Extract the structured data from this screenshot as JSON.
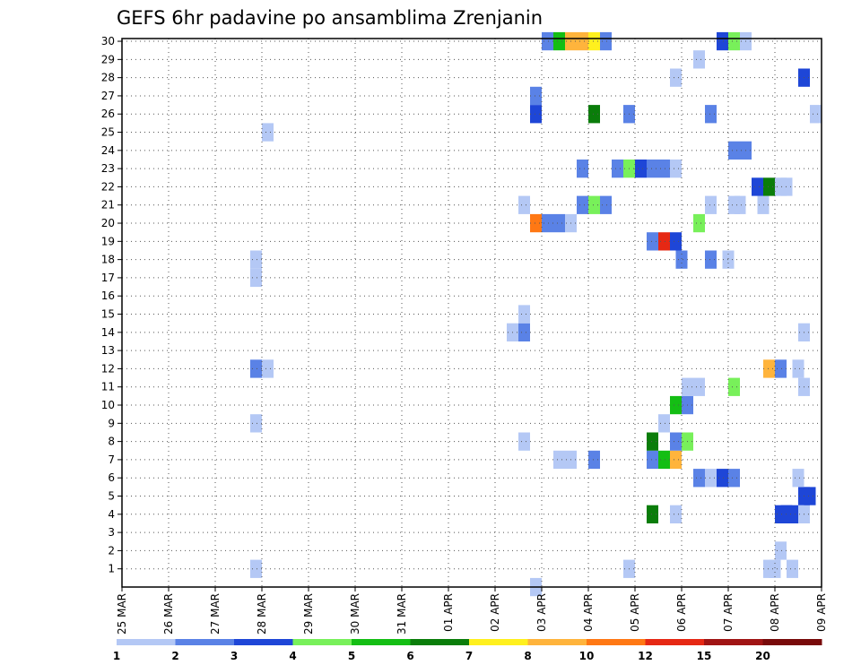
{
  "chart_data": {
    "type": "heatmap",
    "title": "GEFS 6hr padavine po ansamblima Zrenjanin",
    "xlabel": "",
    "ylabel": "",
    "x_tick_labels": [
      "25 MAR",
      "26 MAR",
      "27 MAR",
      "28 MAR",
      "29 MAR",
      "30 MAR",
      "31 MAR",
      "01 APR",
      "02 APR",
      "03 APR",
      "04 APR",
      "05 APR",
      "06 APR",
      "07 APR",
      "08 APR",
      "09 APR"
    ],
    "y_tick_labels": [
      "1",
      "2",
      "3",
      "4",
      "5",
      "6",
      "7",
      "8",
      "9",
      "10",
      "11",
      "12",
      "13",
      "14",
      "15",
      "16",
      "17",
      "18",
      "19",
      "20",
      "21",
      "22",
      "23",
      "24",
      "25",
      "26",
      "27",
      "28",
      "29",
      "30"
    ],
    "xlim_days": [
      0,
      15
    ],
    "ylim": [
      0,
      30
    ],
    "grid": true,
    "cell_width_hours": 6,
    "legend": {
      "placement": "bottom",
      "labels": [
        "1",
        "2",
        "3",
        "4",
        "5",
        "6",
        "7",
        "8",
        "10",
        "12",
        "15",
        "20"
      ],
      "colors": [
        "#b4c8f5",
        "#5a82e6",
        "#1e46d7",
        "#78f05a",
        "#14be14",
        "#0a7d0a",
        "#fff01e",
        "#ffb43c",
        "#ff7814",
        "#e62814",
        "#a01414",
        "#780a0a"
      ],
      "unit": "mm"
    },
    "series_note": "cells: [day offset from 25 MAR, ensemble member, color class index 1-12]",
    "cells": [
      [
        8.75,
        0,
        1
      ],
      [
        2.75,
        1,
        1
      ],
      [
        13.75,
        1,
        1
      ],
      [
        13.875,
        1,
        1
      ],
      [
        14.25,
        1,
        1
      ],
      [
        10.75,
        1,
        1
      ],
      [
        14.0,
        2,
        1
      ],
      [
        11.25,
        4,
        6
      ],
      [
        14.0,
        4,
        3
      ],
      [
        14.125,
        4,
        3
      ],
      [
        14.25,
        4,
        3
      ],
      [
        14.5,
        4,
        1
      ],
      [
        11.75,
        4,
        1
      ],
      [
        14.5,
        5,
        3
      ],
      [
        14.625,
        5,
        3
      ],
      [
        12.25,
        6,
        2
      ],
      [
        12.5,
        6,
        1
      ],
      [
        12.75,
        6,
        3
      ],
      [
        13.0,
        6,
        2
      ],
      [
        14.375,
        6,
        1
      ],
      [
        9.25,
        7,
        1
      ],
      [
        9.5,
        7,
        1
      ],
      [
        10.0,
        7,
        2
      ],
      [
        11.25,
        7,
        2
      ],
      [
        11.5,
        7,
        5
      ],
      [
        11.75,
        7,
        8
      ],
      [
        8.5,
        8,
        1
      ],
      [
        11.25,
        8,
        6
      ],
      [
        11.75,
        8,
        2
      ],
      [
        12.0,
        8,
        4
      ],
      [
        2.75,
        9,
        1
      ],
      [
        11.5,
        9,
        1
      ],
      [
        11.75,
        10,
        5
      ],
      [
        12.0,
        10,
        2
      ],
      [
        12.0,
        11,
        1
      ],
      [
        12.25,
        11,
        1
      ],
      [
        13.0,
        11,
        4
      ],
      [
        14.5,
        11,
        1
      ],
      [
        2.75,
        12,
        2
      ],
      [
        3.0,
        12,
        1
      ],
      [
        13.75,
        12,
        8
      ],
      [
        14.0,
        12,
        2
      ],
      [
        14.375,
        12,
        1
      ],
      [
        8.25,
        14,
        1
      ],
      [
        8.5,
        14,
        2
      ],
      [
        14.5,
        14,
        1
      ],
      [
        8.5,
        15,
        1
      ],
      [
        2.75,
        17,
        1
      ],
      [
        2.75,
        18,
        1
      ],
      [
        11.875,
        18,
        2
      ],
      [
        12.5,
        18,
        2
      ],
      [
        12.875,
        18,
        1
      ],
      [
        11.25,
        19,
        2
      ],
      [
        11.5,
        19,
        10
      ],
      [
        11.75,
        19,
        3
      ],
      [
        8.75,
        20,
        9
      ],
      [
        9.0,
        20,
        2
      ],
      [
        9.25,
        20,
        2
      ],
      [
        9.5,
        20,
        1
      ],
      [
        12.25,
        20,
        4
      ],
      [
        8.5,
        21,
        1
      ],
      [
        9.75,
        21,
        2
      ],
      [
        10.0,
        21,
        4
      ],
      [
        10.25,
        21,
        2
      ],
      [
        12.5,
        21,
        1
      ],
      [
        13.0,
        21,
        1
      ],
      [
        13.125,
        21,
        1
      ],
      [
        13.625,
        21,
        1
      ],
      [
        13.5,
        22,
        3
      ],
      [
        13.75,
        22,
        6
      ],
      [
        14.0,
        22,
        1
      ],
      [
        14.125,
        22,
        1
      ],
      [
        9.75,
        23,
        2
      ],
      [
        10.5,
        23,
        2
      ],
      [
        10.75,
        23,
        4
      ],
      [
        11.0,
        23,
        3
      ],
      [
        11.25,
        23,
        2
      ],
      [
        11.5,
        23,
        2
      ],
      [
        11.75,
        23,
        1
      ],
      [
        13.0,
        24,
        2
      ],
      [
        13.25,
        24,
        2
      ],
      [
        3.0,
        25,
        1
      ],
      [
        8.75,
        26,
        3
      ],
      [
        10.0,
        26,
        6
      ],
      [
        10.75,
        26,
        2
      ],
      [
        12.5,
        26,
        2
      ],
      [
        14.75,
        26,
        1
      ],
      [
        8.75,
        27,
        2
      ],
      [
        11.75,
        28,
        1
      ],
      [
        14.5,
        28,
        3
      ],
      [
        12.25,
        29,
        1
      ],
      [
        9.0,
        30,
        2
      ],
      [
        9.25,
        30,
        5
      ],
      [
        9.5,
        30,
        8
      ],
      [
        9.75,
        30,
        8
      ],
      [
        10.0,
        30,
        7
      ],
      [
        10.25,
        30,
        2
      ],
      [
        12.75,
        30,
        3
      ],
      [
        13.0,
        30,
        4
      ],
      [
        13.25,
        30,
        1
      ]
    ]
  }
}
